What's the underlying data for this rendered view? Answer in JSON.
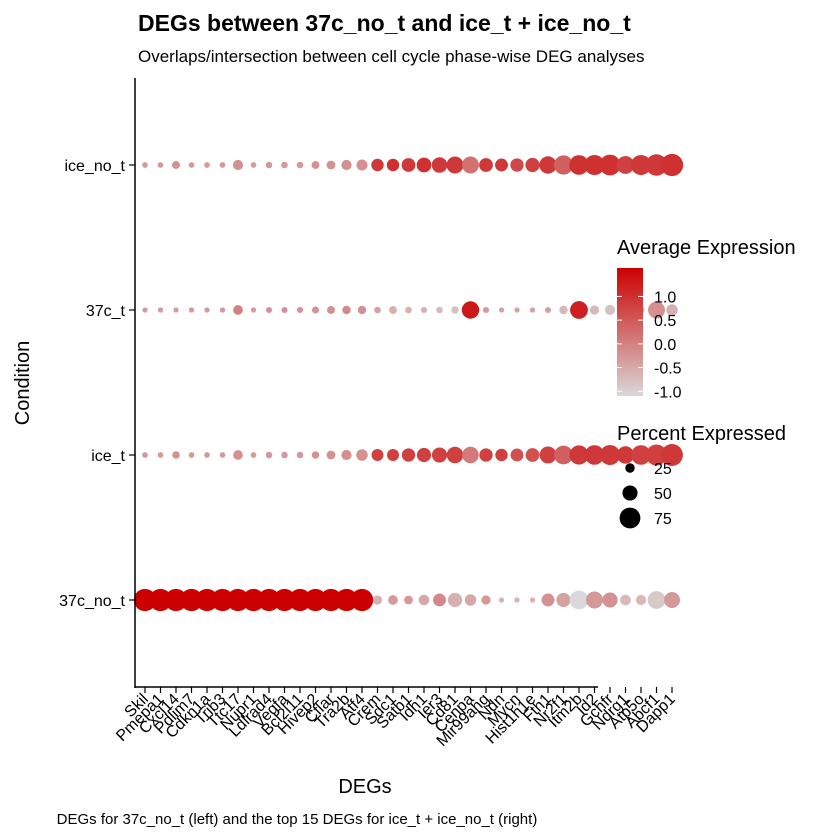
{
  "chart_data": {
    "type": "dot",
    "title": "DEGs between 37c_no_t and ice_t + ice_no_t",
    "subtitle": "Overlaps/intersection between cell cycle phase-wise DEG analyses",
    "xlabel": "DEGs",
    "ylabel": "Condition",
    "caption": "DEGs for 37c_no_t (left) and the top 15 DEGs for ice_t + ice_no_t (right)",
    "categories": [
      "Skil",
      "Pmepa1",
      "Cxcl14",
      "Pdlim7",
      "Cdkn1a",
      "Trib3",
      "Ttc17",
      "Nupr1",
      "Ldlrad4",
      "Vegfa",
      "Bcl2l11",
      "Hivep2",
      "Cflar",
      "Tra2b",
      "Atf4",
      "Crem",
      "Sdc1",
      "Satb1",
      "Idh1",
      "Ier3",
      "Cd81",
      "Cenpa",
      "Mir99ahg",
      "Ndn",
      "Mycn",
      "Hist1h1e",
      "Fth1",
      "Nr2f1",
      "Itm2b",
      "Id2",
      "Gchfr",
      "Ndrg1",
      "Atp5o",
      "Abcf1",
      "Dapp1"
    ],
    "x_tick_labels": [
      "Skil",
      "Pmepa1",
      "Cxcl14",
      "Pdlim7",
      "Cdkn1a",
      "Trib3",
      "Ttc17",
      "Nupr1",
      "Ldlrad4",
      "Vegfa",
      "Bcl2l11",
      "Hivep2",
      "Cflar",
      "Tra2b",
      "Atf4",
      "Crem",
      "Sdc1",
      "Satb1",
      "Idh1",
      "Ier3",
      "Cd81",
      "Cenpa",
      "Mir99ahg",
      "Ndn",
      "Mycn",
      "Hist1h1e",
      "Fth1",
      "Nr2f1",
      "Itm2b",
      "Id2",
      "Gchfr",
      "Ndrg1",
      "Atp5o",
      "Abcf1",
      "Dapp1"
    ],
    "conditions": [
      "ice_no_t",
      "37c_t",
      "ice_t",
      "37c_no_t"
    ],
    "series": [
      {
        "condition": "ice_no_t",
        "avg_expression": [
          -0.3,
          -0.3,
          -0.2,
          -0.3,
          -0.3,
          -0.3,
          -0.2,
          -0.3,
          -0.3,
          -0.3,
          -0.3,
          -0.2,
          -0.2,
          -0.2,
          -0.2,
          0.9,
          1.0,
          0.9,
          1.0,
          0.9,
          0.9,
          0.2,
          0.9,
          0.9,
          0.7,
          0.8,
          0.9,
          0.4,
          1.0,
          1.0,
          1.0,
          0.8,
          0.9,
          0.9,
          1.0
        ],
        "pct_expressed": [
          8,
          8,
          18,
          8,
          8,
          8,
          28,
          8,
          12,
          12,
          12,
          18,
          22,
          28,
          32,
          38,
          38,
          44,
          48,
          52,
          58,
          58,
          44,
          40,
          42,
          46,
          60,
          68,
          70,
          72,
          75,
          62,
          72,
          78,
          82
        ]
      },
      {
        "condition": "37c_t",
        "avg_expression": [
          -0.3,
          -0.3,
          -0.3,
          -0.3,
          -0.3,
          -0.3,
          0.0,
          -0.3,
          -0.2,
          -0.2,
          -0.2,
          -0.2,
          -0.2,
          -0.1,
          -0.2,
          -0.4,
          -0.6,
          -0.6,
          -0.6,
          -0.7,
          -0.8,
          1.3,
          -0.3,
          -0.4,
          -0.4,
          -0.4,
          -0.4,
          -0.7,
          1.2,
          -0.7,
          -0.8,
          -0.6,
          -0.6,
          -0.2,
          -0.6
        ],
        "pct_expressed": [
          6,
          6,
          6,
          6,
          6,
          6,
          26,
          6,
          10,
          10,
          10,
          14,
          18,
          20,
          20,
          12,
          18,
          12,
          10,
          12,
          16,
          60,
          10,
          6,
          6,
          6,
          10,
          20,
          62,
          24,
          28,
          22,
          14,
          58,
          34
        ]
      },
      {
        "condition": "ice_t",
        "avg_expression": [
          -0.3,
          -0.3,
          -0.2,
          -0.3,
          -0.3,
          -0.3,
          -0.2,
          -0.3,
          -0.3,
          -0.3,
          -0.3,
          -0.2,
          -0.2,
          -0.2,
          -0.2,
          0.8,
          0.8,
          0.8,
          0.8,
          0.8,
          0.8,
          0.1,
          0.8,
          0.8,
          0.6,
          0.6,
          0.8,
          0.4,
          0.9,
          0.9,
          0.9,
          0.9,
          0.8,
          0.8,
          0.9
        ],
        "pct_expressed": [
          8,
          8,
          16,
          8,
          8,
          8,
          26,
          8,
          12,
          12,
          12,
          16,
          22,
          28,
          34,
          36,
          36,
          42,
          46,
          50,
          56,
          56,
          42,
          38,
          40,
          44,
          58,
          66,
          68,
          70,
          72,
          60,
          70,
          76,
          80
        ]
      },
      {
        "condition": "37c_no_t",
        "avg_expression": [
          1.6,
          1.6,
          1.6,
          1.6,
          1.6,
          1.6,
          1.6,
          1.6,
          1.6,
          1.6,
          1.6,
          1.6,
          1.6,
          1.6,
          1.6,
          -0.6,
          -0.3,
          -0.3,
          -0.5,
          -0.1,
          -0.6,
          -0.5,
          -0.3,
          -0.6,
          -0.6,
          -0.6,
          -0.2,
          -0.4,
          -1.1,
          -0.3,
          -0.2,
          -0.7,
          -0.7,
          -0.9,
          -0.3
        ],
        "pct_expressed": [
          82,
          82,
          82,
          82,
          82,
          82,
          82,
          82,
          82,
          82,
          82,
          82,
          82,
          82,
          82,
          24,
          26,
          22,
          30,
          40,
          46,
          34,
          24,
          6,
          6,
          6,
          40,
          46,
          66,
          58,
          50,
          30,
          28,
          62,
          54
        ]
      }
    ],
    "color_scale": {
      "low": "#d9d9d9",
      "high": "#cc0000",
      "domain": [
        -1.1,
        1.6
      ]
    },
    "color_legend": {
      "title": "Average Expression",
      "ticks": [
        "1.0",
        "0.5",
        "0.0",
        "-0.5",
        "-1.0"
      ],
      "values": [
        1.0,
        0.5,
        0.0,
        -0.5,
        -1.0
      ]
    },
    "size_legend": {
      "title": "Percent Expressed",
      "labels": [
        "25",
        "50",
        "75"
      ],
      "values": [
        25,
        50,
        75
      ]
    },
    "legend_position": "right",
    "grid": false
  }
}
